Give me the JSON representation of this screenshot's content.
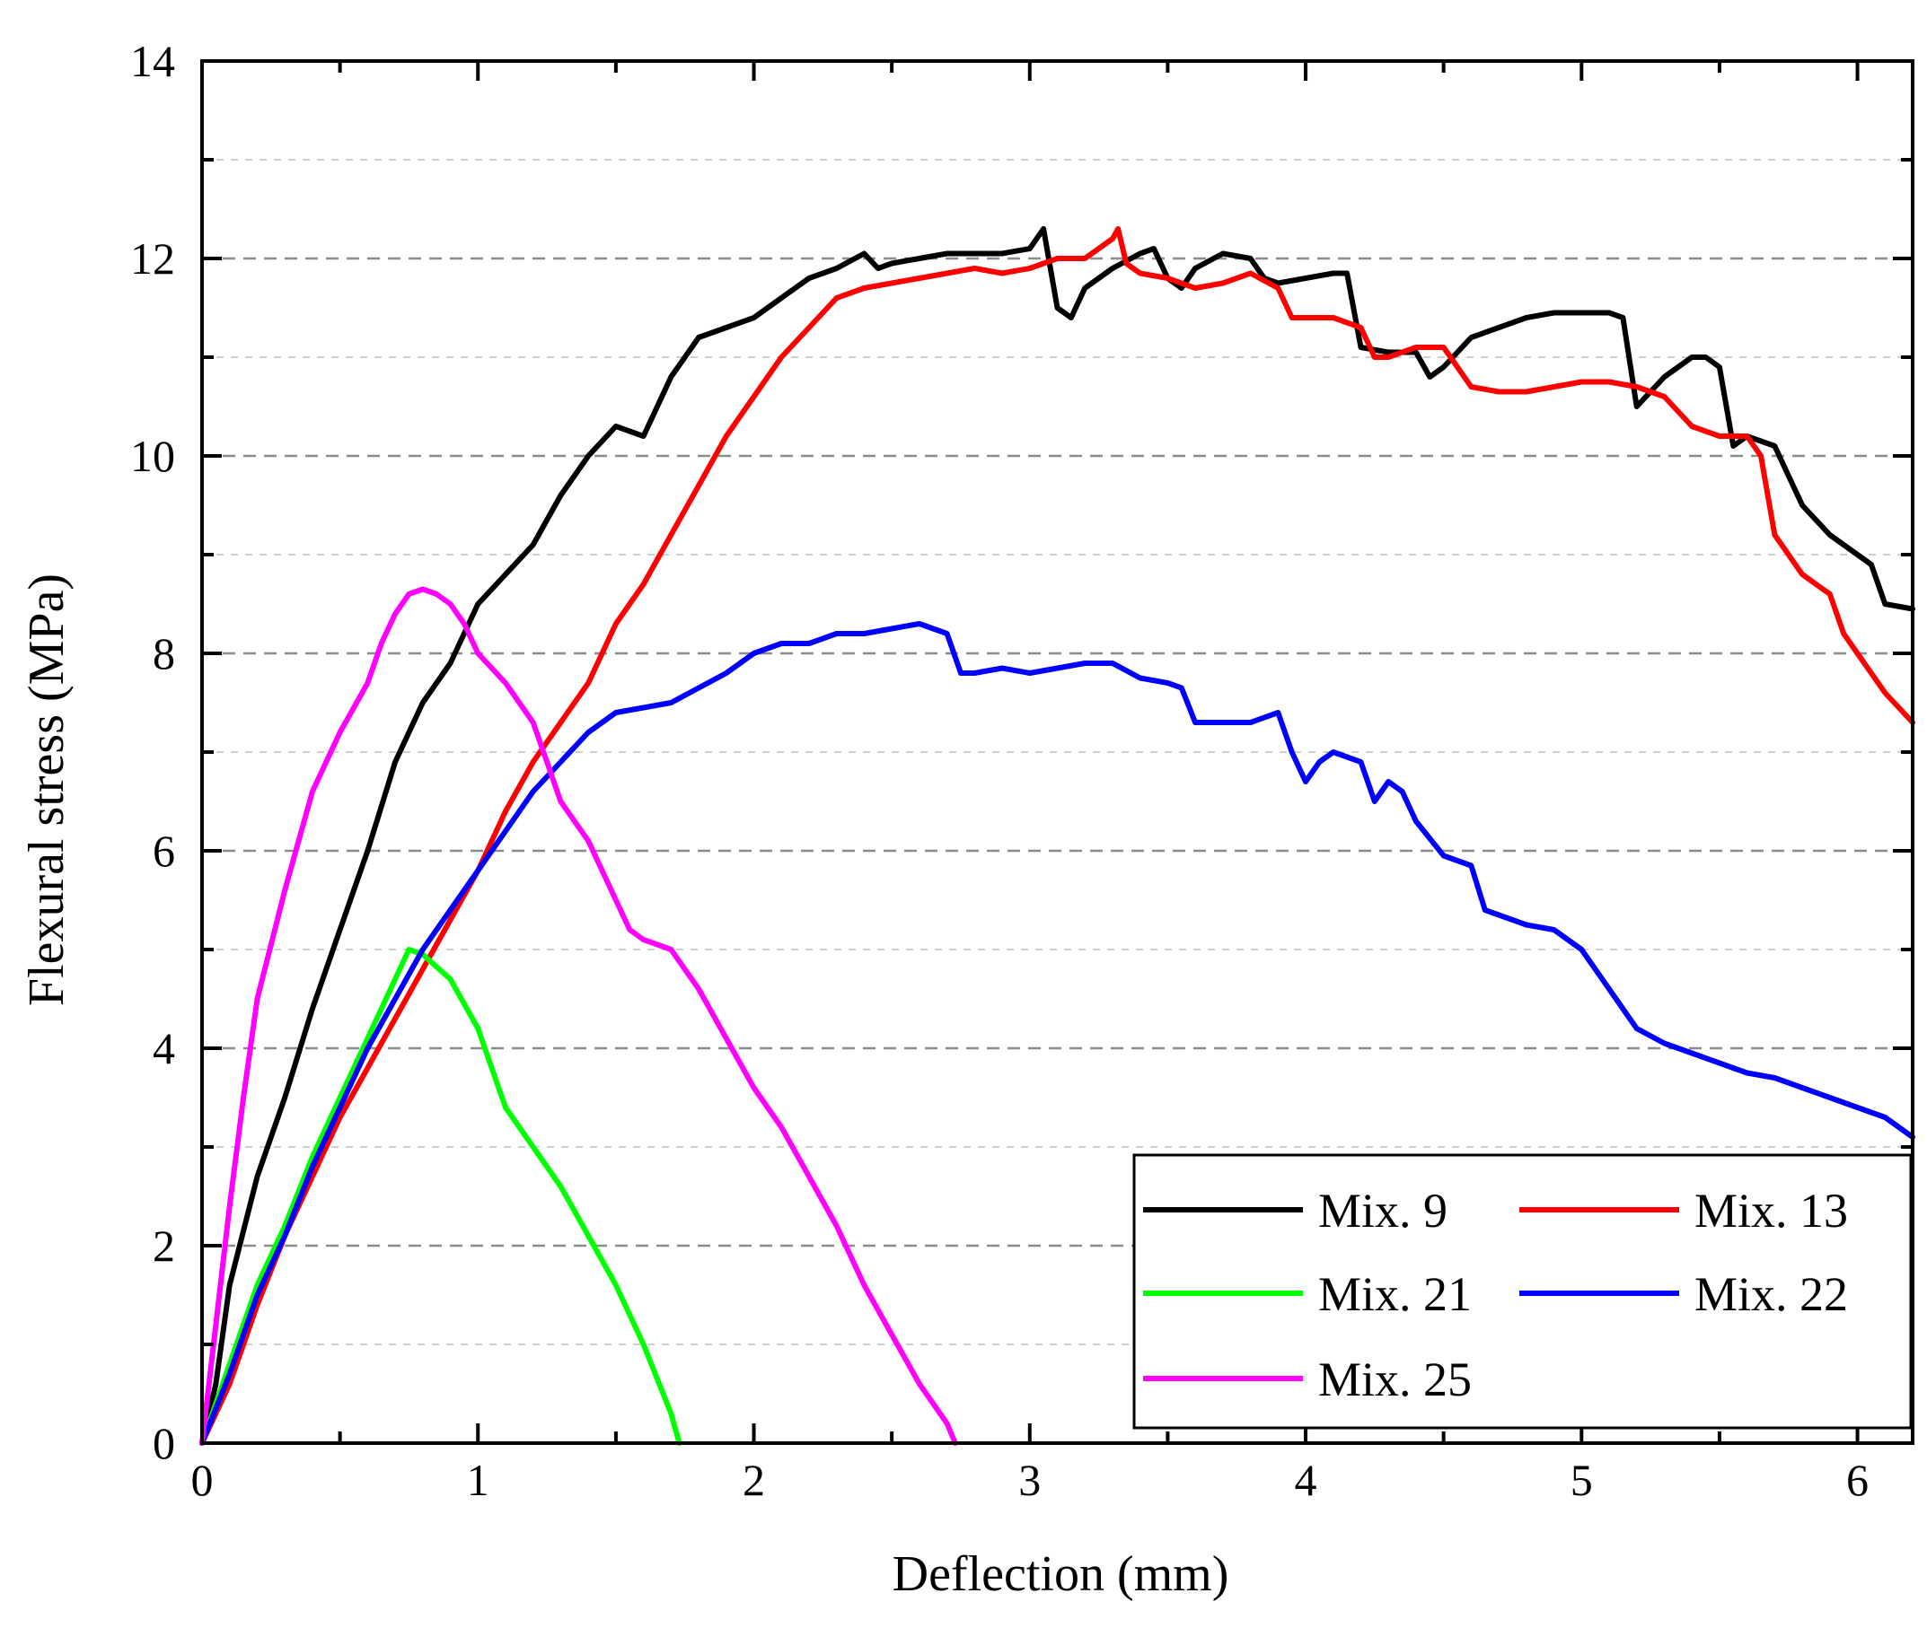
{
  "chart_data": {
    "type": "line",
    "xlabel": "Deflection (mm)",
    "ylabel": "Flexural stress (MPa)",
    "xlim": [
      0,
      6.2
    ],
    "ylim": [
      0,
      14
    ],
    "x_ticks": [
      "0",
      "1",
      "2",
      "3",
      "4",
      "5",
      "6"
    ],
    "y_ticks": [
      "0",
      "2",
      "4",
      "6",
      "8",
      "10",
      "12",
      "14"
    ],
    "grid": "horizontal dashed",
    "legend_position": "bottom-right",
    "series": [
      {
        "name": "Mix. 9",
        "color": "#000000",
        "points": [
          [
            0,
            0
          ],
          [
            0.05,
            0.6
          ],
          [
            0.1,
            1.6
          ],
          [
            0.2,
            2.7
          ],
          [
            0.3,
            3.5
          ],
          [
            0.4,
            4.4
          ],
          [
            0.5,
            5.2
          ],
          [
            0.6,
            6.0
          ],
          [
            0.7,
            6.9
          ],
          [
            0.8,
            7.5
          ],
          [
            0.9,
            7.9
          ],
          [
            1.0,
            8.5
          ],
          [
            1.1,
            8.8
          ],
          [
            1.2,
            9.1
          ],
          [
            1.3,
            9.6
          ],
          [
            1.4,
            10.0
          ],
          [
            1.5,
            10.3
          ],
          [
            1.55,
            10.25
          ],
          [
            1.6,
            10.2
          ],
          [
            1.65,
            10.5
          ],
          [
            1.7,
            10.8
          ],
          [
            1.8,
            11.2
          ],
          [
            1.9,
            11.3
          ],
          [
            2.0,
            11.4
          ],
          [
            2.1,
            11.6
          ],
          [
            2.2,
            11.8
          ],
          [
            2.3,
            11.9
          ],
          [
            2.4,
            12.05
          ],
          [
            2.45,
            11.9
          ],
          [
            2.5,
            11.95
          ],
          [
            2.6,
            12.0
          ],
          [
            2.7,
            12.05
          ],
          [
            2.8,
            12.05
          ],
          [
            2.9,
            12.05
          ],
          [
            3.0,
            12.1
          ],
          [
            3.05,
            12.3
          ],
          [
            3.1,
            11.5
          ],
          [
            3.15,
            11.4
          ],
          [
            3.2,
            11.7
          ],
          [
            3.3,
            11.9
          ],
          [
            3.4,
            12.05
          ],
          [
            3.45,
            12.1
          ],
          [
            3.5,
            11.8
          ],
          [
            3.55,
            11.7
          ],
          [
            3.6,
            11.9
          ],
          [
            3.7,
            12.05
          ],
          [
            3.8,
            12.0
          ],
          [
            3.85,
            11.8
          ],
          [
            3.9,
            11.75
          ],
          [
            4.0,
            11.8
          ],
          [
            4.1,
            11.85
          ],
          [
            4.15,
            11.85
          ],
          [
            4.2,
            11.1
          ],
          [
            4.3,
            11.05
          ],
          [
            4.4,
            11.05
          ],
          [
            4.45,
            10.8
          ],
          [
            4.5,
            10.9
          ],
          [
            4.6,
            11.2
          ],
          [
            4.7,
            11.3
          ],
          [
            4.8,
            11.4
          ],
          [
            4.9,
            11.45
          ],
          [
            5.0,
            11.45
          ],
          [
            5.1,
            11.45
          ],
          [
            5.15,
            11.4
          ],
          [
            5.2,
            10.5
          ],
          [
            5.3,
            10.8
          ],
          [
            5.4,
            11.0
          ],
          [
            5.45,
            11.0
          ],
          [
            5.5,
            10.9
          ],
          [
            5.55,
            10.1
          ],
          [
            5.6,
            10.2
          ],
          [
            5.7,
            10.1
          ],
          [
            5.75,
            9.8
          ],
          [
            5.8,
            9.5
          ],
          [
            5.9,
            9.2
          ],
          [
            6.0,
            9.0
          ],
          [
            6.05,
            8.9
          ],
          [
            6.1,
            8.5
          ],
          [
            6.2,
            8.45
          ]
        ]
      },
      {
        "name": "Mix. 13",
        "color": "#ff0000",
        "points": [
          [
            0,
            0
          ],
          [
            0.1,
            0.6
          ],
          [
            0.2,
            1.4
          ],
          [
            0.3,
            2.1
          ],
          [
            0.4,
            2.7
          ],
          [
            0.5,
            3.3
          ],
          [
            0.6,
            3.8
          ],
          [
            0.7,
            4.3
          ],
          [
            0.8,
            4.8
          ],
          [
            0.9,
            5.3
          ],
          [
            1.0,
            5.8
          ],
          [
            1.1,
            6.4
          ],
          [
            1.2,
            6.9
          ],
          [
            1.3,
            7.3
          ],
          [
            1.4,
            7.7
          ],
          [
            1.5,
            8.3
          ],
          [
            1.6,
            8.7
          ],
          [
            1.7,
            9.2
          ],
          [
            1.8,
            9.7
          ],
          [
            1.9,
            10.2
          ],
          [
            2.0,
            10.6
          ],
          [
            2.1,
            11.0
          ],
          [
            2.2,
            11.3
          ],
          [
            2.3,
            11.6
          ],
          [
            2.4,
            11.7
          ],
          [
            2.5,
            11.75
          ],
          [
            2.6,
            11.8
          ],
          [
            2.7,
            11.85
          ],
          [
            2.8,
            11.9
          ],
          [
            2.9,
            11.85
          ],
          [
            3.0,
            11.9
          ],
          [
            3.1,
            12.0
          ],
          [
            3.2,
            12.0
          ],
          [
            3.3,
            12.2
          ],
          [
            3.32,
            12.3
          ],
          [
            3.35,
            11.95
          ],
          [
            3.4,
            11.85
          ],
          [
            3.5,
            11.8
          ],
          [
            3.6,
            11.7
          ],
          [
            3.7,
            11.75
          ],
          [
            3.8,
            11.85
          ],
          [
            3.9,
            11.7
          ],
          [
            3.95,
            11.4
          ],
          [
            4.0,
            11.4
          ],
          [
            4.1,
            11.4
          ],
          [
            4.2,
            11.3
          ],
          [
            4.25,
            11.0
          ],
          [
            4.3,
            11.0
          ],
          [
            4.4,
            11.1
          ],
          [
            4.5,
            11.1
          ],
          [
            4.55,
            10.9
          ],
          [
            4.6,
            10.7
          ],
          [
            4.7,
            10.65
          ],
          [
            4.8,
            10.65
          ],
          [
            4.9,
            10.7
          ],
          [
            5.0,
            10.75
          ],
          [
            5.1,
            10.75
          ],
          [
            5.2,
            10.7
          ],
          [
            5.3,
            10.6
          ],
          [
            5.4,
            10.3
          ],
          [
            5.5,
            10.2
          ],
          [
            5.6,
            10.2
          ],
          [
            5.65,
            10.0
          ],
          [
            5.7,
            9.2
          ],
          [
            5.8,
            8.8
          ],
          [
            5.9,
            8.6
          ],
          [
            5.95,
            8.2
          ],
          [
            6.0,
            8.0
          ],
          [
            6.1,
            7.6
          ],
          [
            6.2,
            7.3
          ]
        ]
      },
      {
        "name": "Mix. 21",
        "color": "#00ff00",
        "points": [
          [
            0,
            0
          ],
          [
            0.1,
            0.8
          ],
          [
            0.2,
            1.6
          ],
          [
            0.3,
            2.2
          ],
          [
            0.4,
            2.9
          ],
          [
            0.5,
            3.5
          ],
          [
            0.6,
            4.1
          ],
          [
            0.7,
            4.7
          ],
          [
            0.75,
            5.0
          ],
          [
            0.8,
            4.95
          ],
          [
            0.9,
            4.7
          ],
          [
            1.0,
            4.2
          ],
          [
            1.05,
            3.8
          ],
          [
            1.1,
            3.4
          ],
          [
            1.2,
            3.0
          ],
          [
            1.3,
            2.6
          ],
          [
            1.4,
            2.1
          ],
          [
            1.5,
            1.6
          ],
          [
            1.6,
            1.0
          ],
          [
            1.7,
            0.3
          ],
          [
            1.73,
            0
          ]
        ]
      },
      {
        "name": "Mix. 22",
        "color": "#0000ff",
        "points": [
          [
            0,
            0
          ],
          [
            0.1,
            0.7
          ],
          [
            0.2,
            1.5
          ],
          [
            0.3,
            2.1
          ],
          [
            0.4,
            2.8
          ],
          [
            0.5,
            3.4
          ],
          [
            0.6,
            4.0
          ],
          [
            0.7,
            4.5
          ],
          [
            0.8,
            5.0
          ],
          [
            0.9,
            5.4
          ],
          [
            1.0,
            5.8
          ],
          [
            1.1,
            6.2
          ],
          [
            1.2,
            6.6
          ],
          [
            1.3,
            6.9
          ],
          [
            1.4,
            7.2
          ],
          [
            1.5,
            7.4
          ],
          [
            1.6,
            7.45
          ],
          [
            1.7,
            7.5
          ],
          [
            1.8,
            7.65
          ],
          [
            1.9,
            7.8
          ],
          [
            2.0,
            8.0
          ],
          [
            2.1,
            8.1
          ],
          [
            2.2,
            8.1
          ],
          [
            2.3,
            8.2
          ],
          [
            2.4,
            8.2
          ],
          [
            2.5,
            8.25
          ],
          [
            2.6,
            8.3
          ],
          [
            2.7,
            8.2
          ],
          [
            2.75,
            7.8
          ],
          [
            2.8,
            7.8
          ],
          [
            2.9,
            7.85
          ],
          [
            3.0,
            7.8
          ],
          [
            3.1,
            7.85
          ],
          [
            3.2,
            7.9
          ],
          [
            3.3,
            7.9
          ],
          [
            3.4,
            7.75
          ],
          [
            3.5,
            7.7
          ],
          [
            3.55,
            7.65
          ],
          [
            3.6,
            7.3
          ],
          [
            3.7,
            7.3
          ],
          [
            3.8,
            7.3
          ],
          [
            3.9,
            7.4
          ],
          [
            3.95,
            7.0
          ],
          [
            4.0,
            6.7
          ],
          [
            4.05,
            6.9
          ],
          [
            4.1,
            7.0
          ],
          [
            4.2,
            6.9
          ],
          [
            4.25,
            6.5
          ],
          [
            4.3,
            6.7
          ],
          [
            4.35,
            6.6
          ],
          [
            4.4,
            6.3
          ],
          [
            4.5,
            5.95
          ],
          [
            4.6,
            5.85
          ],
          [
            4.65,
            5.4
          ],
          [
            4.7,
            5.35
          ],
          [
            4.8,
            5.25
          ],
          [
            4.9,
            5.2
          ],
          [
            5.0,
            5.0
          ],
          [
            5.1,
            4.6
          ],
          [
            5.2,
            4.2
          ],
          [
            5.3,
            4.05
          ],
          [
            5.4,
            3.95
          ],
          [
            5.5,
            3.85
          ],
          [
            5.6,
            3.75
          ],
          [
            5.7,
            3.7
          ],
          [
            5.8,
            3.6
          ],
          [
            5.9,
            3.5
          ],
          [
            6.0,
            3.4
          ],
          [
            6.1,
            3.3
          ],
          [
            6.2,
            3.1
          ]
        ]
      },
      {
        "name": "Mix. 25",
        "color": "#ff00ff",
        "points": [
          [
            0,
            0
          ],
          [
            0.05,
            1.2
          ],
          [
            0.1,
            2.4
          ],
          [
            0.15,
            3.5
          ],
          [
            0.2,
            4.5
          ],
          [
            0.3,
            5.6
          ],
          [
            0.4,
            6.6
          ],
          [
            0.5,
            7.2
          ],
          [
            0.6,
            7.7
          ],
          [
            0.65,
            8.1
          ],
          [
            0.7,
            8.4
          ],
          [
            0.75,
            8.6
          ],
          [
            0.8,
            8.65
          ],
          [
            0.85,
            8.6
          ],
          [
            0.9,
            8.5
          ],
          [
            0.95,
            8.3
          ],
          [
            1.0,
            8.0
          ],
          [
            1.1,
            7.7
          ],
          [
            1.2,
            7.3
          ],
          [
            1.25,
            6.9
          ],
          [
            1.3,
            6.5
          ],
          [
            1.4,
            6.1
          ],
          [
            1.5,
            5.5
          ],
          [
            1.55,
            5.2
          ],
          [
            1.6,
            5.1
          ],
          [
            1.7,
            5.0
          ],
          [
            1.8,
            4.6
          ],
          [
            1.9,
            4.1
          ],
          [
            2.0,
            3.6
          ],
          [
            2.1,
            3.2
          ],
          [
            2.2,
            2.7
          ],
          [
            2.3,
            2.2
          ],
          [
            2.4,
            1.6
          ],
          [
            2.5,
            1.1
          ],
          [
            2.6,
            0.6
          ],
          [
            2.7,
            0.2
          ],
          [
            2.73,
            0
          ]
        ]
      }
    ]
  }
}
